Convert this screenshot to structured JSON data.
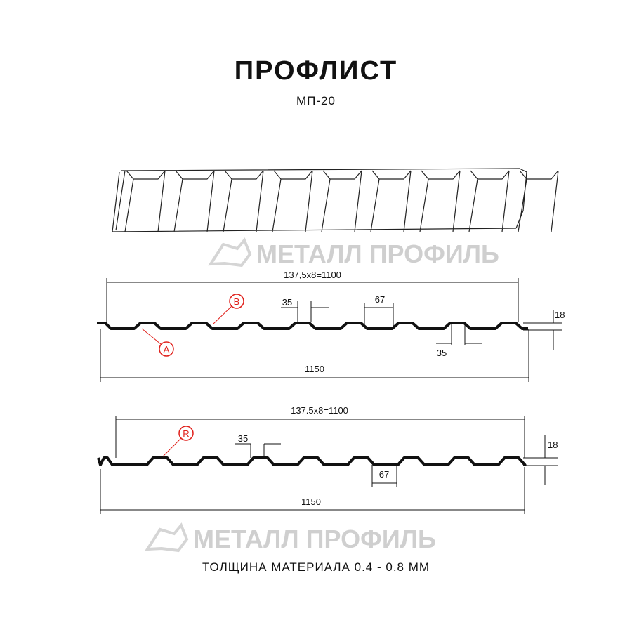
{
  "title": "ПРОФЛИСТ",
  "subtitle": "МП-20",
  "watermark": "МЕТАЛЛ ПРОФИЛЬ",
  "profile_a": {
    "pitch_label": "137,5x8=1100",
    "width_label": "1150",
    "crest_label": "35",
    "crest_label_2": "35",
    "trough_label": "67",
    "height_label": "18",
    "markers": [
      "A",
      "B"
    ]
  },
  "profile_b": {
    "pitch_label": "137.5x8=1100",
    "width_label": "1150",
    "crest_label": "35",
    "trough_label": "67",
    "height_label": "18",
    "markers": [
      "R"
    ]
  },
  "footer": "ТОЛЩИНА МАТЕРИАЛА 0.4 - 0.8 ММ",
  "colors": {
    "line": "#111111",
    "marker": "#e0201b",
    "watermark": "#cfcfcf"
  }
}
